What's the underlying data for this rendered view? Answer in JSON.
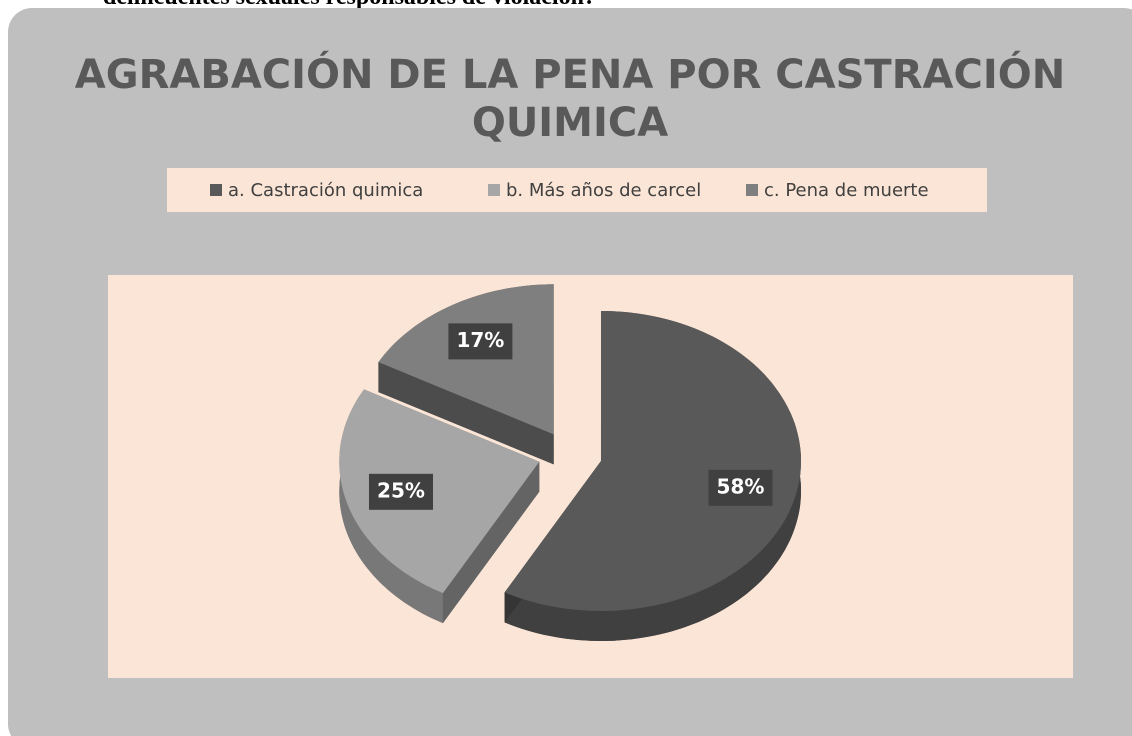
{
  "caption": "delincuentes sexuales responsables de violación?",
  "chart_data": {
    "type": "pie",
    "title": [
      "AGRABACIÓN DE LA PENA POR CASTRACIÓN",
      "QUIMICA"
    ],
    "categories": [
      "a. Castración quimica",
      "b. Más años de carcel",
      "c. Pena de muerte"
    ],
    "values": [
      58,
      25,
      17
    ],
    "value_labels": [
      "58%",
      "25%",
      "17%"
    ],
    "colors": [
      "#595959",
      "#a6a6a6",
      "#7f7f7f"
    ],
    "legend": "top"
  }
}
